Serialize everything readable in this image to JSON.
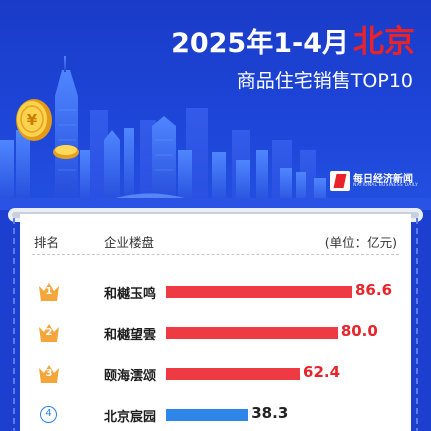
{
  "title": {
    "line1_prefix": "2025年1-4月",
    "line1_city": "北京",
    "line2": "商品住宅销售TOP10"
  },
  "brand": {
    "name_cn": "每日经济新闻",
    "name_en": "NATIONAL BUSINESS DAILY"
  },
  "icons": {
    "hero": [
      "city-skyline-icon",
      "gold-yuan-coin-icon"
    ],
    "brand": "nbd-logo-icon",
    "top3": "crown-icon",
    "others": "rank-circle-icon"
  },
  "colors": {
    "top3_bar": "#ee3b43",
    "top3_value": "#e8232a",
    "other_bar": "#2e86e8",
    "other_value": "#222222",
    "crown": "#f4a63a",
    "circle": "#2e7fe8",
    "background": "#1c3fd0"
  },
  "chart_data": {
    "type": "bar",
    "orientation": "horizontal",
    "header": {
      "rank": "排名",
      "name": "企业楼盘",
      "unit": "(单位：亿元)"
    },
    "categories": [
      "和樾玉鸣",
      "和樾望雲",
      "颐海澐颂",
      "北京宸园"
    ],
    "ranks": [
      "1",
      "2",
      "3",
      "4"
    ],
    "values": [
      86.6,
      80.0,
      62.4,
      38.3
    ],
    "value_labels": [
      "86.6",
      "80.0",
      "62.4",
      "38.3"
    ],
    "xlim": [
      0,
      86.6
    ],
    "grid": false,
    "legend": "none"
  }
}
